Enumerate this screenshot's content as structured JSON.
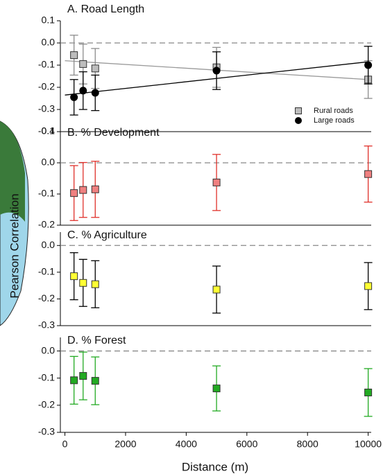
{
  "figure": {
    "xlabel": "Distance (m)",
    "ylabel": "Pearson Correlation"
  },
  "chart_data": [
    {
      "type": "scatter",
      "title": "A. Road Length",
      "xlim": [
        -150,
        10100
      ],
      "ylim": [
        -0.4,
        0.1
      ],
      "yticks": [
        0.1,
        {
          "value": 0,
          "label": "0.0"
        },
        -0.1,
        -0.2,
        -0.3,
        -0.4
      ],
      "hline": 0,
      "legend": "lower right",
      "x": [
        300,
        600,
        1000,
        5000,
        10000
      ],
      "series": [
        {
          "name": "Rural roads",
          "marker": "square",
          "color": "#bdbdbd",
          "errcolor": "#8c8c8c",
          "values": [
            -0.055,
            -0.095,
            -0.115,
            -0.11,
            -0.165
          ],
          "errors": [
            0.09,
            0.09,
            0.09,
            0.09,
            0.085
          ],
          "trend_x": [
            0,
            10000
          ],
          "trend": [
            -0.08,
            -0.165
          ],
          "trend_color": "#999999"
        },
        {
          "name": "Large roads",
          "marker": "circle",
          "color": "#000000",
          "errcolor": "#000000",
          "values": [
            -0.245,
            -0.215,
            -0.225,
            -0.125,
            -0.1
          ],
          "errors": [
            0.08,
            0.085,
            0.08,
            0.085,
            0.085
          ],
          "trend_x": [
            0,
            10000
          ],
          "trend": [
            -0.235,
            -0.085
          ],
          "trend_color": "#000000"
        }
      ]
    },
    {
      "type": "scatter",
      "title": "B. % Development",
      "xlim": [
        -150,
        10100
      ],
      "ylim": [
        -0.2,
        0.1
      ],
      "yticks": [
        0.1,
        {
          "value": 0,
          "label": "0.0"
        },
        -0.1,
        -0.2
      ],
      "hline": 0,
      "x": [
        300,
        600,
        1000,
        5000,
        10000
      ],
      "series": [
        {
          "marker": "square",
          "color": "#f08080",
          "errcolor": "#e0302a",
          "values": [
            -0.097,
            -0.087,
            -0.085,
            -0.063,
            -0.036
          ],
          "errors": [
            0.088,
            0.088,
            0.09,
            0.09,
            0.09
          ]
        }
      ]
    },
    {
      "type": "scatter",
      "title": "C. % Agriculture",
      "xlim": [
        -150,
        10100
      ],
      "ylim": [
        -0.3,
        0.05
      ],
      "yticks": [
        {
          "value": 0,
          "label": "0.0"
        },
        -0.1,
        -0.2,
        -0.3
      ],
      "hline": 0,
      "x": [
        300,
        600,
        1000,
        5000,
        10000
      ],
      "series": [
        {
          "marker": "square",
          "color": "#ffff33",
          "errcolor": "#000000",
          "values": [
            -0.115,
            -0.14,
            -0.145,
            -0.165,
            -0.152
          ],
          "errors": [
            0.088,
            0.088,
            0.088,
            0.088,
            0.088
          ]
        }
      ]
    },
    {
      "type": "scatter",
      "title": "D. % Forest",
      "xlim": [
        -150,
        10100
      ],
      "ylim": [
        -0.3,
        0.05
      ],
      "yticks": [
        {
          "value": 0,
          "label": "0.0"
        },
        -0.1,
        -0.2,
        -0.3
      ],
      "hline": 0,
      "xticks": [
        0,
        2000,
        4000,
        6000,
        8000,
        10000
      ],
      "x": [
        300,
        600,
        1000,
        5000,
        10000
      ],
      "series": [
        {
          "marker": "square",
          "color": "#22aa22",
          "errcolor": "#22aa22",
          "values": [
            -0.108,
            -0.092,
            -0.11,
            -0.138,
            -0.153
          ],
          "errors": [
            0.088,
            0.088,
            0.088,
            0.083,
            0.088
          ]
        }
      ]
    }
  ]
}
